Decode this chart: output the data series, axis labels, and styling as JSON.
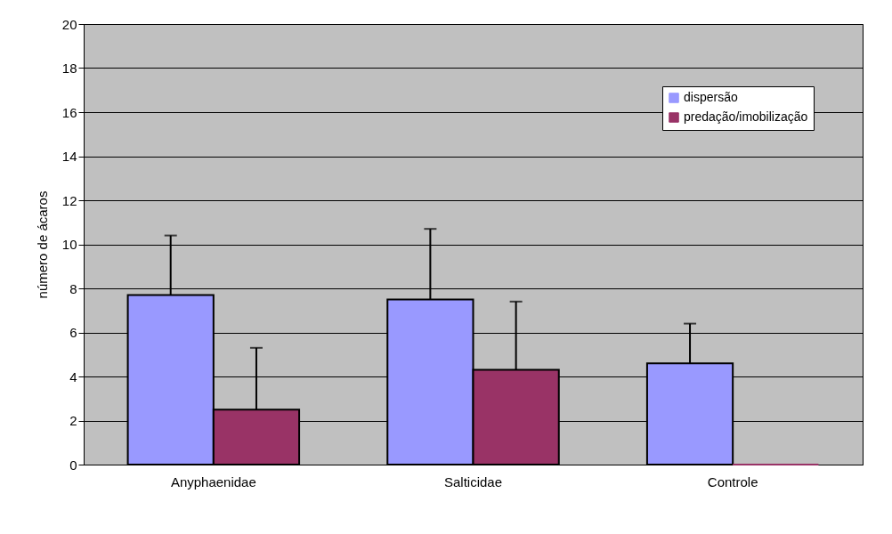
{
  "chart_data": {
    "type": "bar",
    "ylabel": "número de ácaros",
    "categories": [
      "Anyphaenidae",
      "Salticidae",
      "Controle"
    ],
    "series": [
      {
        "name": "dispersão",
        "color": "#9999ff",
        "values": [
          7.7,
          7.5,
          4.6
        ],
        "errors": [
          [
            7.7,
            10.4
          ],
          [
            7.5,
            10.7
          ],
          [
            4.6,
            6.4
          ]
        ]
      },
      {
        "name": "predação/imobilização",
        "color": "#993366",
        "values": [
          2.5,
          4.3,
          0
        ],
        "errors": [
          [
            2.5,
            5.3
          ],
          [
            4.3,
            7.4
          ],
          null
        ]
      }
    ],
    "ylim": [
      0,
      20
    ],
    "yticks": [
      0,
      2,
      4,
      6,
      8,
      10,
      12,
      14,
      16,
      18,
      20
    ],
    "grid": "y",
    "legend": "top right"
  }
}
